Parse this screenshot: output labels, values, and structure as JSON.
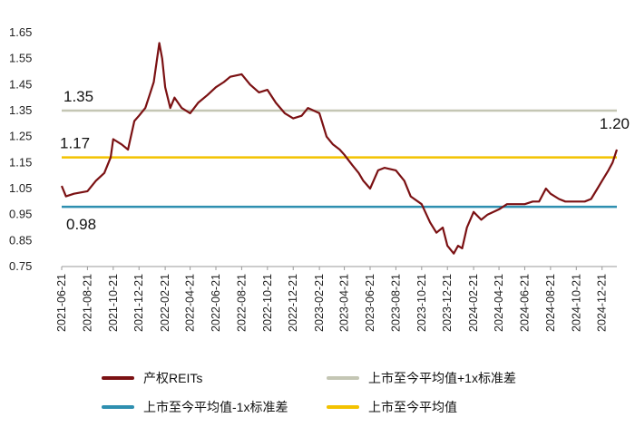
{
  "chart_data": {
    "type": "line",
    "ylim": [
      0.75,
      1.65
    ],
    "y_ticks": [
      "0.75",
      "0.85",
      "0.95",
      "1.05",
      "1.15",
      "1.25",
      "1.35",
      "1.45",
      "1.55",
      "1.65"
    ],
    "x_ticks": [
      "2021-06-21",
      "2021-08-21",
      "2021-10-21",
      "2021-12-21",
      "2022-02-21",
      "2022-04-21",
      "2022-06-21",
      "2022-08-21",
      "2022-10-21",
      "2022-12-21",
      "2023-02-21",
      "2023-04-21",
      "2023-06-21",
      "2023-08-21",
      "2023-10-21",
      "2023-12-21",
      "2024-02-21",
      "2024-04-21",
      "2024-06-21",
      "2024-08-21",
      "2024-10-21",
      "2024-12-21"
    ],
    "series": [
      {
        "name": "产权REITs",
        "color": "#7b1113",
        "points": [
          [
            "2021-06-21",
            1.06
          ],
          [
            "2021-07-01",
            1.02
          ],
          [
            "2021-07-20",
            1.03
          ],
          [
            "2021-08-21",
            1.04
          ],
          [
            "2021-09-10",
            1.08
          ],
          [
            "2021-09-30",
            1.11
          ],
          [
            "2021-10-15",
            1.17
          ],
          [
            "2021-10-21",
            1.24
          ],
          [
            "2021-11-10",
            1.22
          ],
          [
            "2021-11-25",
            1.2
          ],
          [
            "2021-12-10",
            1.31
          ],
          [
            "2021-12-21",
            1.33
          ],
          [
            "2022-01-05",
            1.36
          ],
          [
            "2022-01-15",
            1.41
          ],
          [
            "2022-01-25",
            1.46
          ],
          [
            "2022-02-07",
            1.61
          ],
          [
            "2022-02-14",
            1.55
          ],
          [
            "2022-02-21",
            1.44
          ],
          [
            "2022-03-05",
            1.36
          ],
          [
            "2022-03-15",
            1.4
          ],
          [
            "2022-04-01",
            1.36
          ],
          [
            "2022-04-21",
            1.34
          ],
          [
            "2022-05-10",
            1.38
          ],
          [
            "2022-06-01",
            1.41
          ],
          [
            "2022-06-21",
            1.44
          ],
          [
            "2022-07-10",
            1.46
          ],
          [
            "2022-07-25",
            1.48
          ],
          [
            "2022-08-21",
            1.49
          ],
          [
            "2022-09-10",
            1.45
          ],
          [
            "2022-10-01",
            1.42
          ],
          [
            "2022-10-21",
            1.43
          ],
          [
            "2022-11-10",
            1.38
          ],
          [
            "2022-12-01",
            1.34
          ],
          [
            "2022-12-21",
            1.32
          ],
          [
            "2023-01-10",
            1.33
          ],
          [
            "2023-01-25",
            1.36
          ],
          [
            "2023-02-21",
            1.34
          ],
          [
            "2023-03-10",
            1.25
          ],
          [
            "2023-03-25",
            1.22
          ],
          [
            "2023-04-10",
            1.2
          ],
          [
            "2023-04-21",
            1.18
          ],
          [
            "2023-05-10",
            1.14
          ],
          [
            "2023-05-25",
            1.11
          ],
          [
            "2023-06-05",
            1.08
          ],
          [
            "2023-06-21",
            1.05
          ],
          [
            "2023-07-10",
            1.12
          ],
          [
            "2023-07-25",
            1.13
          ],
          [
            "2023-08-21",
            1.12
          ],
          [
            "2023-09-10",
            1.08
          ],
          [
            "2023-09-25",
            1.02
          ],
          [
            "2023-10-21",
            0.99
          ],
          [
            "2023-11-10",
            0.92
          ],
          [
            "2023-11-25",
            0.88
          ],
          [
            "2023-12-10",
            0.9
          ],
          [
            "2023-12-21",
            0.83
          ],
          [
            "2024-01-05",
            0.8
          ],
          [
            "2024-01-15",
            0.83
          ],
          [
            "2024-01-25",
            0.82
          ],
          [
            "2024-02-05",
            0.9
          ],
          [
            "2024-02-21",
            0.96
          ],
          [
            "2024-03-10",
            0.93
          ],
          [
            "2024-03-25",
            0.95
          ],
          [
            "2024-04-21",
            0.97
          ],
          [
            "2024-05-10",
            0.99
          ],
          [
            "2024-06-01",
            0.99
          ],
          [
            "2024-06-21",
            0.99
          ],
          [
            "2024-07-10",
            1.0
          ],
          [
            "2024-07-25",
            1.0
          ],
          [
            "2024-08-10",
            1.05
          ],
          [
            "2024-08-21",
            1.03
          ],
          [
            "2024-09-10",
            1.01
          ],
          [
            "2024-09-25",
            1.0
          ],
          [
            "2024-10-21",
            1.0
          ],
          [
            "2024-11-10",
            1.0
          ],
          [
            "2024-11-25",
            1.01
          ],
          [
            "2024-12-10",
            1.05
          ],
          [
            "2024-12-21",
            1.08
          ],
          [
            "2025-01-05",
            1.12
          ],
          [
            "2025-01-15",
            1.15
          ],
          [
            "2025-01-25",
            1.2
          ]
        ]
      },
      {
        "name": "上市至今平均值+1x标准差",
        "color": "#c4c6b4",
        "value": 1.35
      },
      {
        "name": "上市至今平均值-1x标准差",
        "color": "#2e8fb0",
        "value": 0.98
      },
      {
        "name": "上市至今平均值",
        "color": "#f3c200",
        "value": 1.17
      }
    ],
    "annotations": [
      "1.35",
      "1.17",
      "0.98",
      "1.20"
    ],
    "legend_position": "bottom",
    "grid": false
  }
}
